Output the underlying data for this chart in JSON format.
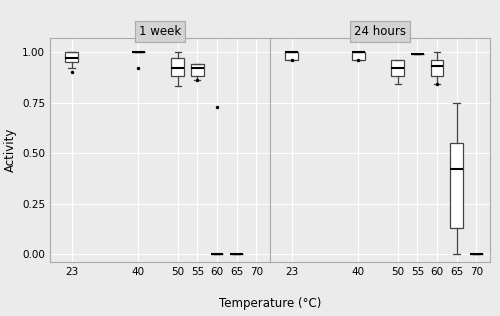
{
  "panel1_title": "1 week",
  "panel2_title": "24 hours",
  "ylabel": "Activity",
  "xlabel": "Temperature (°C)",
  "ylim": [
    -0.04,
    1.07
  ],
  "yticks": [
    0.0,
    0.25,
    0.5,
    0.75,
    1.0
  ],
  "ytick_labels": [
    "0.00",
    "0.25",
    "0.50",
    "0.75",
    "1.00"
  ],
  "xticks1": [
    23,
    40,
    50,
    55,
    60,
    65,
    70
  ],
  "xticks2": [
    23,
    40,
    50,
    55,
    60,
    65,
    70
  ],
  "background_color": "#ebebeb",
  "panel_bg": "#ebebeb",
  "grid_color": "#ffffff",
  "box_edge_color": "#444444",
  "median_color": "#000000",
  "whisker_color": "#444444",
  "flier_color": "#000000",
  "facet_bg": "#d3d3d3",
  "facet_edge": "#aaaaaa",
  "panel1_boxes": {
    "23": {
      "q1": 0.95,
      "median": 0.97,
      "q3": 1.0,
      "whishi": 1.0,
      "whislo": 0.92,
      "fliers": [
        0.9
      ]
    },
    "40": {
      "q1": 1.0,
      "median": 1.0,
      "q3": 1.0,
      "whishi": 1.0,
      "whislo": 1.0,
      "fliers": [
        0.92
      ]
    },
    "50": {
      "q1": 0.88,
      "median": 0.92,
      "q3": 0.97,
      "whishi": 1.0,
      "whislo": 0.83,
      "fliers": []
    },
    "55": {
      "q1": 0.88,
      "median": 0.92,
      "q3": 0.94,
      "whishi": 0.94,
      "whislo": 0.86,
      "fliers": [
        0.86
      ]
    },
    "60": {
      "q1": 0.0,
      "median": 0.0,
      "q3": 0.0,
      "whishi": 0.0,
      "whislo": 0.0,
      "fliers": [
        0.73
      ]
    },
    "65": {
      "q1": 0.0,
      "median": 0.0,
      "q3": 0.0,
      "whishi": 0.0,
      "whislo": 0.0,
      "fliers": []
    }
  },
  "panel2_boxes": {
    "23": {
      "q1": 0.96,
      "median": 1.0,
      "q3": 1.0,
      "whishi": 1.0,
      "whislo": 0.96,
      "fliers": [
        0.96
      ]
    },
    "40": {
      "q1": 0.96,
      "median": 1.0,
      "q3": 1.0,
      "whishi": 1.0,
      "whislo": 0.96,
      "fliers": [
        0.96
      ]
    },
    "50": {
      "q1": 0.88,
      "median": 0.92,
      "q3": 0.96,
      "whishi": 0.96,
      "whislo": 0.84,
      "fliers": []
    },
    "55": {
      "q1": 0.99,
      "median": 0.99,
      "q3": 0.99,
      "whishi": 0.99,
      "whislo": 0.99,
      "fliers": []
    },
    "60": {
      "q1": 0.88,
      "median": 0.93,
      "q3": 0.96,
      "whishi": 1.0,
      "whislo": 0.84,
      "fliers": [
        0.84
      ]
    },
    "65": {
      "q1": 0.13,
      "median": 0.42,
      "q3": 0.55,
      "whishi": 0.75,
      "whislo": 0.0,
      "fliers": []
    },
    "70": {
      "q1": 0.0,
      "median": 0.0,
      "q3": 0.0,
      "whishi": 0.0,
      "whislo": 0.0,
      "fliers": []
    }
  }
}
